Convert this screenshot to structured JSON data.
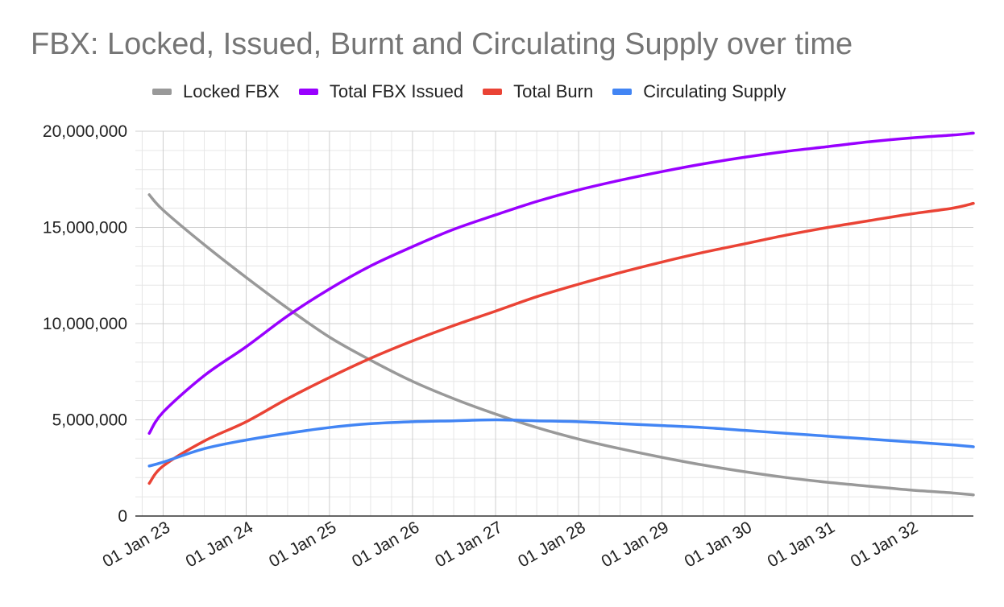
{
  "chart_data": {
    "type": "line",
    "title": "FBX: Locked, Issued, Burnt and Circulating Supply over time",
    "xlabel": "",
    "ylabel": "",
    "x_domain": [
      "2022-09-01",
      "2032-10-01"
    ],
    "x_ticks": [
      {
        "date": "2023-01-01",
        "label": "01 Jan 23"
      },
      {
        "date": "2024-01-01",
        "label": "01 Jan 24"
      },
      {
        "date": "2025-01-01",
        "label": "01 Jan 25"
      },
      {
        "date": "2026-01-01",
        "label": "01 Jan 26"
      },
      {
        "date": "2027-01-01",
        "label": "01 Jan 27"
      },
      {
        "date": "2028-01-01",
        "label": "01 Jan 28"
      },
      {
        "date": "2029-01-01",
        "label": "01 Jan 29"
      },
      {
        "date": "2030-01-01",
        "label": "01 Jan 30"
      },
      {
        "date": "2031-01-01",
        "label": "01 Jan 31"
      },
      {
        "date": "2032-01-01",
        "label": "01 Jan 32"
      }
    ],
    "ylim": [
      0,
      20000000
    ],
    "y_ticks": [
      {
        "value": 0,
        "label": "0"
      },
      {
        "value": 5000000,
        "label": "5,000,000"
      },
      {
        "value": 10000000,
        "label": "10,000,000"
      },
      {
        "value": 15000000,
        "label": "15,000,000"
      },
      {
        "value": 20000000,
        "label": "20,000,000"
      }
    ],
    "grid": true,
    "legend_position": "top",
    "x": [
      "2022-11-01",
      "2023-01-01",
      "2023-07-01",
      "2024-01-01",
      "2024-07-01",
      "2025-01-01",
      "2025-07-01",
      "2026-01-01",
      "2026-07-01",
      "2027-01-01",
      "2027-07-01",
      "2028-01-01",
      "2028-07-01",
      "2029-01-01",
      "2029-07-01",
      "2030-01-01",
      "2030-07-01",
      "2031-01-01",
      "2031-07-01",
      "2032-01-01",
      "2032-07-01",
      "2032-10-01"
    ],
    "series": [
      {
        "name": "Locked FBX",
        "color": "#999999",
        "values": [
          16700000,
          15900000,
          14100000,
          12400000,
          10800000,
          9300000,
          8100000,
          7000000,
          6100000,
          5300000,
          4600000,
          4000000,
          3500000,
          3050000,
          2650000,
          2300000,
          2000000,
          1750000,
          1550000,
          1350000,
          1200000,
          1100000
        ]
      },
      {
        "name": "Total FBX Issued",
        "color": "#9900ff",
        "values": [
          4300000,
          5400000,
          7300000,
          8800000,
          10400000,
          11800000,
          13000000,
          14000000,
          14900000,
          15650000,
          16350000,
          16950000,
          17450000,
          17900000,
          18300000,
          18650000,
          18950000,
          19200000,
          19450000,
          19650000,
          19800000,
          19900000
        ]
      },
      {
        "name": "Total Burn",
        "color": "#ea4335",
        "values": [
          1700000,
          2600000,
          3900000,
          4900000,
          6100000,
          7200000,
          8200000,
          9100000,
          9900000,
          10650000,
          11400000,
          12050000,
          12650000,
          13200000,
          13700000,
          14150000,
          14600000,
          15000000,
          15350000,
          15700000,
          16000000,
          16250000
        ]
      },
      {
        "name": "Circulating Supply",
        "color": "#4285f4",
        "values": [
          2600000,
          2800000,
          3500000,
          3950000,
          4300000,
          4600000,
          4800000,
          4900000,
          4950000,
          5000000,
          4950000,
          4900000,
          4800000,
          4700000,
          4600000,
          4450000,
          4300000,
          4150000,
          4000000,
          3850000,
          3700000,
          3600000
        ]
      }
    ]
  }
}
